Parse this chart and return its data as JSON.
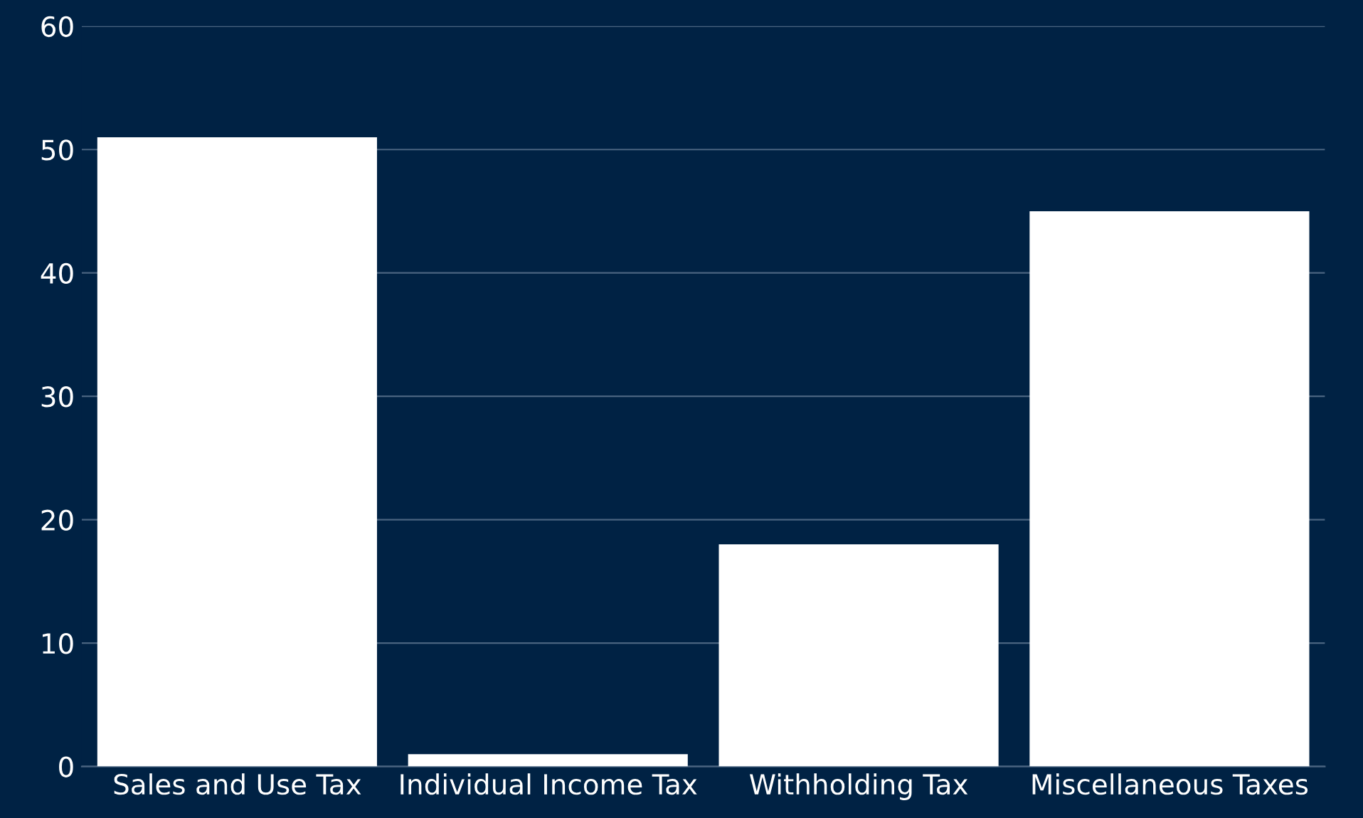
{
  "chart_data": {
    "type": "bar",
    "categories": [
      "Sales and Use Tax",
      "Individual Income Tax",
      "Withholding Tax",
      "Miscellaneous Taxes"
    ],
    "values": [
      51,
      1,
      18,
      45
    ],
    "color": "#ffffff",
    "ylim": [
      0,
      60
    ],
    "yticks": [
      0,
      10,
      20,
      30,
      40,
      50,
      60
    ],
    "grid": "y"
  }
}
